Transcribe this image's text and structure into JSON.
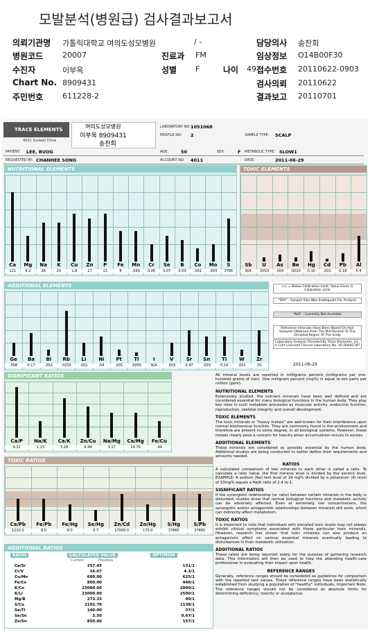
{
  "header": {
    "title": "모발분석(병원급) 검사결과보고서"
  },
  "info": {
    "institution_label": "의뢰기관명",
    "institution": "가톨릭대학교 여의도성모병원",
    "institution_suffix": "/ -",
    "doctor_label": "담당의사",
    "doctor": "송찬희",
    "code_label": "병원코드",
    "code": "20007",
    "dept_label": "진료과",
    "dept": "FM",
    "clinical_label": "임상정보",
    "clinical": "O14B00F30",
    "patient_label": "수진자",
    "patient": "이부옥",
    "sex_label": "성별",
    "sex": "F",
    "age_label": "나이",
    "age": "49",
    "receipt_label": "접수번호",
    "receipt": "20110622-0903",
    "chart_label": "Chart No.",
    "chart_no": "8909431",
    "request_label": "검사의뢰",
    "request": "20110622",
    "id_label": "주민번호",
    "id": "611228-2",
    "result_label": "결과보고",
    "result": "20110701"
  },
  "report": {
    "lab": {
      "name": "TRACE ELEMENTS",
      "address": "4501 Sunbelt Drive",
      "handwritten": [
        "여의도성모병원",
        "이부옥 8909431",
        "송찬희"
      ],
      "fields": [
        [
          "LABORATORY NO:",
          "1051068"
        ],
        [
          "PROFILE NO:",
          "2"
        ],
        [
          "SAMPLE TYPE:",
          "SCALP"
        ],
        [
          "PATIENT:",
          "LEE, BUOG"
        ],
        [
          "AGE:",
          "50"
        ],
        [
          "SEX:",
          "F"
        ],
        [
          "METABOLIC TYPE:",
          "SLOW1"
        ],
        [
          "REQUESTED BY:",
          "CHANHEE SONG"
        ],
        [
          "ACCOUNT NO:",
          "4011"
        ],
        [
          "DATE:",
          "2011-06-29"
        ]
      ]
    },
    "nutritional": {
      "title": "NUTRITIONAL ELEMENTS",
      "symbols": [
        "Ca",
        "Mg",
        "Na",
        "K",
        "Cu",
        "Zn",
        "P",
        "Fe",
        "Mn",
        "Cr",
        "Se",
        "B",
        "Co",
        "Mo",
        "S"
      ],
      "values": [
        "121",
        "8.2",
        "26",
        "23",
        "1.8",
        "17",
        "13",
        "8",
        ".093",
        "0.05",
        "0.07",
        "0.03",
        ".001",
        ".003",
        "3786"
      ]
    },
    "toxic": {
      "title": "TOXIC ELEMENTS",
      "symbols": [
        "Sb",
        "U",
        "As",
        "Be",
        "Hg",
        "Cd",
        "Pb",
        "Al"
      ],
      "values": [
        "N/A",
        ".0010",
        ".004",
        ".0010",
        "0.10",
        ".001",
        "0.18",
        "5.4"
      ]
    },
    "additional": {
      "title": "ADDITIONAL ELEMENTS",
      "symbols": [
        "Ge",
        "Ba",
        "Bi",
        "Rb",
        "Li",
        "Ni",
        "Pt",
        "Tl",
        "I",
        "V",
        "Sr",
        "Sn",
        "Ti",
        "W",
        "Zr"
      ],
      "values": [
        ".008",
        "0.17",
        ".002",
        ".0202",
        ".001",
        ".04",
        ".001",
        ".0005",
        "N/A",
        ".003",
        "0.47",
        ".020",
        "0.14",
        ".001",
        ".01"
      ]
    },
    "significant_ratios": {
      "title": "SIGNIFICANT RATIOS",
      "symbols": [
        "Ca/P",
        "Na/K",
        "Ca/K",
        "Zn/Cu",
        "Na/Mg",
        "Ca/Mg",
        "Fe/Cu"
      ],
      "values": [
        "9.31",
        "1.13",
        "5.26",
        "9.44",
        "3.17",
        "14.76",
        ".44"
      ]
    },
    "toxic_ratios": {
      "title": "TOXIC RATIOS",
      "symbols": [
        "Ca/Pb",
        "Fe/Pb",
        "Fe/Hg",
        "Se/Hg",
        "Zn/Cd",
        "Zn/Hg",
        "S/Hg",
        "S/Pb"
      ],
      "values": [
        "1210.0",
        "8.0",
        "8.0",
        "0.7",
        "17000.0",
        "170.0",
        "37860",
        "37860"
      ]
    },
    "additional_ratios": {
      "title": "ADDITIONAL RATIOS",
      "header": [
        "RATIO",
        "CALCULATED VALUE",
        "OPTIMUM"
      ],
      "subheader": [
        "Current",
        "Previous"
      ],
      "rows": [
        [
          "Ca/Sr",
          "257.45",
          "131/1"
        ],
        [
          "Cr/V",
          "16.67",
          "4.3/1"
        ],
        [
          "Cu/Mo",
          "600.00",
          "625/1"
        ],
        [
          "Fe/Co",
          "800.00",
          "440/1"
        ],
        [
          "K/Co",
          "23000.00",
          "2000/1"
        ],
        [
          "K/Li",
          "23000.00",
          "2500/1"
        ],
        [
          "Mg/B",
          "273.33",
          "40/1"
        ],
        [
          "S/Cu",
          "2102.78",
          "1138/1"
        ],
        [
          "Se/Tl",
          "140.00",
          "37/1"
        ],
        [
          "Se/Sn",
          "3.50",
          "0.67/1"
        ],
        [
          "Zn/Sn",
          "850.00",
          "157/1"
        ]
      ]
    },
    "legend": [
      "<< = Below Calibration Limit. Value Given Is Calibration Limit",
      "\"SRV\" - Sample Size Was Inadequate For Analysis",
      "\"N/A\" - Currently Not Available",
      "Reference Intervals Have Been Based On Hair Samples Obtained From The Mid-Parietal To The Occipital Region Of The Scalp",
      "Laboratory Analysis Provided By Trace Elements, Inc. A CLIA Licensed Clinical Laboratory No. 45 D0481787"
    ],
    "legend_date": "2011-06-29",
    "notes": [
      {
        "heading": "",
        "text": "All mineral levels are reported in milligrams percent (milligrams per one-hundred grams of hair). One milligram percent (mg%) is equal to ten parts per million (ppm)."
      },
      {
        "heading": "NUTRITIONAL ELEMENTS",
        "text": "Extensively studied, the nutrient minerals have been well defined and are considered essential for many biological functions in the human body. They play key roles in such metabolic processes as muscular activity, endocrine function, reproduction, skeletal integrity and overall development."
      },
      {
        "heading": "TOXIC ELEMENTS",
        "text": "The toxic minerals or \"heavy metals\" are well-known for their interference upon normal biochemical function. They are commonly found in the environment and therefore are present to some degree, in all biological systems. However, these metals clearly pose a concern for toxicity when accumulation occurs to excess."
      },
      {
        "heading": "ADDITIONAL ELEMENTS",
        "text": "These minerals are considered as possibly essential by the human body. Additional studies are being conducted to better define their requirements and amounts needed."
      },
      {
        "heading": "RATIOS",
        "text": "A calculated comparison of two minerals to each other is called a ratio. To calculate a ratio value, the first mineral level is divided by the second level. EXAMPLE: A sodium (Na) test level of 24 mg% divided by a potassium (K) level of 10mg% equals a Na/K ratio of 2.4 to 1."
      },
      {
        "heading": "SIGNIFICANT RATIOS",
        "text": "If the synergistic relationship (or ratio) between certain minerals in the body is disturbed, studies show that normal biological functions and metabolic activity can be adversely affected. Even at extremely low concentrations, the synergistic and/or antagonistic relationships between minerals still exist, which can indirectly affect metabolism."
      },
      {
        "heading": "TOXIC RATIOS",
        "text": "It is important to note that individuals with elevated toxic levels may not always exhibit clinical symptoms associated with those particular toxic minerals. However, research has shown that toxic minerals can also produce an antagonistic effect on various essential minerals eventually leading to disturbances in their metabolic utilization."
      },
      {
        "heading": "ADDITIONAL RATIOS",
        "text": "These ratios are being reported solely for the purpose of gathering research data. This information will then be used to help the attending health-care professional in evaluating their impact upon health."
      },
      {
        "heading": "REFERENCE RANGES",
        "text": "Generally, reference ranges should be considered as guidelines for comparison with the reported test values. These reference ranges have been statistically established from studying a population of \"healthy\" individuals. Important Note: The reference ranges should not be considered as absolute limits for determining deficiency, toxicity or acceptance."
      }
    ]
  }
}
